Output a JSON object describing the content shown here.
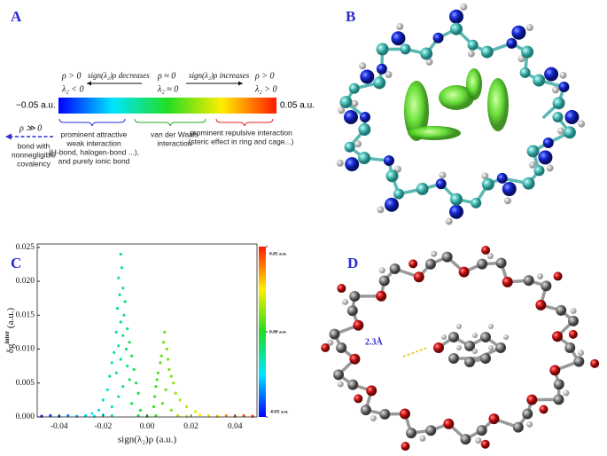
{
  "panel_labels": {
    "a": "A",
    "b": "B",
    "c": "C",
    "d": "D"
  },
  "panel_a": {
    "left_rho": "ρ > 0",
    "left_lambda": "λ₂ < 0",
    "decreases": "sign(λ₂)ρ decreases",
    "mid_rho": "ρ ≈ 0",
    "mid_lambda": "λ₂ ≈ 0",
    "increases": "sign(λ₂)ρ increases",
    "right_rho": "ρ > 0",
    "right_lambda": "λ₂ > 0",
    "bar_min": "−0.05 a.u.",
    "bar_max": "0.05 a.u.",
    "covalent_rho": "ρ ≫ 0",
    "covalent": [
      "bond with",
      "nonnegligible",
      "covalency"
    ],
    "attractive": [
      "prominent attractive",
      "weak interaction",
      "(H-bond, halogen-bond ...),",
      "and purely ionic bond"
    ],
    "vdw": [
      "van der Waals",
      "interaction"
    ],
    "repulsive": [
      "prominent repulsive interaction",
      "(steric effect in ring and cage...)"
    ]
  },
  "chart_data": {
    "type": "scatter",
    "x_label": "sign(λ₂)ρ (a.u.)",
    "y_label": {
      "base": "δg",
      "superscript": "inter",
      "unit": "(a.u.)"
    },
    "colormap": [
      "#0000ff",
      "#00e5ff",
      "#22dd22",
      "#ffee00",
      "#ff1a00"
    ],
    "xlim": [
      -0.05,
      0.05
    ],
    "ylim": [
      0,
      0.0255
    ],
    "xticks": [
      -0.04,
      -0.02,
      {
        "value": 0,
        "label": "0.00"
      },
      0.02,
      0.04
    ],
    "yticks": [
      {
        "value": 0,
        "label": "0.000"
      },
      {
        "value": 0.005,
        "label": "0.005"
      },
      {
        "value": 0.01,
        "label": "0.010"
      },
      {
        "value": 0.015,
        "label": "0.015"
      },
      {
        "value": 0.02,
        "label": "0.020"
      },
      {
        "value": 0.025,
        "label": "0.025"
      }
    ],
    "colorbar_ticks": [
      {
        "value": 0.05,
        "label": "0.05 a.u."
      },
      {
        "value": 0,
        "label": "0.00 a.u."
      },
      {
        "value": -0.05,
        "label": "-0.05 a.u."
      }
    ],
    "x": [
      -0.012,
      -0.0115,
      -0.013,
      -0.011,
      -0.0125,
      -0.01,
      -0.0135,
      -0.0105,
      -0.012,
      -0.009,
      -0.014,
      -0.011,
      -0.008,
      -0.013,
      -0.0095,
      -0.015,
      -0.007,
      -0.012,
      -0.016,
      -0.009,
      -0.006,
      -0.014,
      -0.017,
      -0.008,
      -0.005,
      -0.011,
      -0.018,
      -0.004,
      -0.013,
      -0.02,
      -0.007,
      -0.016,
      -0.022,
      -0.003,
      -0.025,
      0.008,
      0.0075,
      0.009,
      0.0065,
      0.0095,
      0.006,
      0.01,
      0.005,
      0.011,
      0.0045,
      0.012,
      0.004,
      0.0085,
      0.013,
      0.0035,
      0.015,
      0.007,
      0.003,
      0.018,
      0.011,
      0.022,
      -0.048,
      -0.044,
      -0.04,
      -0.036,
      -0.032,
      -0.028,
      -0.024,
      -0.02,
      -0.016,
      -0.004,
      0,
      0.004,
      0.014,
      0.018,
      0.024,
      0.028,
      0.032,
      0.036,
      0.04,
      0.044,
      0.048
    ],
    "values": [
      0.024,
      0.022,
      0.0205,
      0.019,
      0.018,
      0.017,
      0.016,
      0.015,
      0.014,
      0.013,
      0.0125,
      0.012,
      0.011,
      0.0105,
      0.01,
      0.0095,
      0.009,
      0.0085,
      0.008,
      0.0075,
      0.007,
      0.0065,
      0.006,
      0.0055,
      0.005,
      0.0045,
      0.004,
      0.0035,
      0.003,
      0.0025,
      0.002,
      0.0015,
      0.001,
      0.001,
      0.0005,
      0.0125,
      0.011,
      0.01,
      0.009,
      0.0085,
      0.008,
      0.007,
      0.0065,
      0.006,
      0.0055,
      0.005,
      0.0045,
      0.004,
      0.0035,
      0.003,
      0.0025,
      0.002,
      0.0015,
      0.0015,
      0.001,
      0.0008,
      0.0001,
      0.0002,
      0.0001,
      0.0002,
      0.0001,
      0.0002,
      0.0001,
      0.0003,
      0.0002,
      0.0002,
      0.0001,
      0.0002,
      0.0002,
      0.0001,
      0.0003,
      0.0002,
      0.0001,
      0.0002,
      0.0001,
      0.0002,
      0.0001
    ]
  },
  "panel_d": {
    "distance_label": "2.3Å"
  }
}
